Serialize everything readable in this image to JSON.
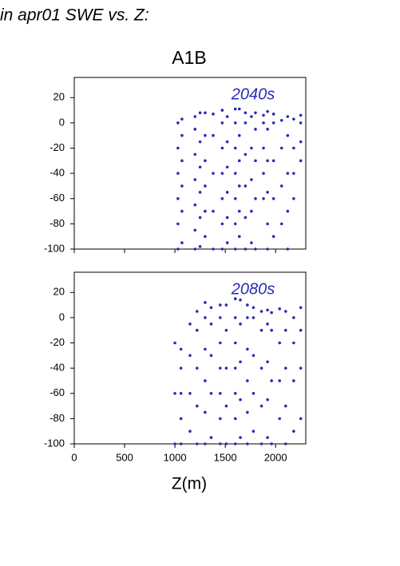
{
  "title": "in apr01 SWE vs. Z:",
  "chart_data": [
    {
      "type": "scatter",
      "title": "A1B",
      "annotation": "2040s",
      "color": "#2a2ab8",
      "xlim": [
        0,
        2300
      ],
      "xticks": [
        0,
        500,
        1000,
        1500,
        2000
      ],
      "ylim": [
        -100,
        36
      ],
      "yticks": [
        -100,
        -80,
        -60,
        -40,
        -20,
        0,
        20
      ],
      "x": [
        1030,
        1030,
        1030,
        1030,
        1030,
        1030,
        1070,
        1070,
        1070,
        1070,
        1070,
        1070,
        1200,
        1200,
        1200,
        1200,
        1200,
        1200,
        1200,
        1250,
        1250,
        1250,
        1250,
        1250,
        1250,
        1300,
        1300,
        1300,
        1300,
        1300,
        1300,
        1380,
        1380,
        1380,
        1380,
        1380,
        1470,
        1470,
        1470,
        1470,
        1470,
        1470,
        1470,
        1520,
        1520,
        1520,
        1520,
        1520,
        1520,
        1600,
        1600,
        1600,
        1600,
        1600,
        1600,
        1600,
        1640,
        1640,
        1640,
        1640,
        1640,
        1640,
        1700,
        1700,
        1700,
        1700,
        1700,
        1700,
        1760,
        1760,
        1760,
        1760,
        1760,
        1800,
        1800,
        1800,
        1800,
        1800,
        1880,
        1880,
        1880,
        1880,
        1880,
        1920,
        1920,
        1920,
        1920,
        1920,
        1920,
        1980,
        1980,
        1980,
        1980,
        1980,
        2060,
        2060,
        2060,
        2060,
        2120,
        2120,
        2120,
        2120,
        2120,
        2180,
        2180,
        2180,
        2180,
        2250,
        2250,
        2250,
        2250
      ],
      "values": [
        -100,
        -80,
        -60,
        -40,
        -20,
        0,
        -95,
        -70,
        -50,
        -30,
        -10,
        3,
        -100,
        -85,
        -65,
        -45,
        -25,
        -5,
        5,
        -98,
        -75,
        -55,
        -35,
        -15,
        8,
        -90,
        -70,
        -50,
        -30,
        -10,
        8,
        -100,
        -70,
        -40,
        -10,
        7,
        -100,
        -80,
        -60,
        -40,
        -20,
        0,
        10,
        -95,
        -75,
        -55,
        -35,
        -15,
        5,
        -100,
        -80,
        -60,
        -40,
        -20,
        0,
        11,
        -90,
        -70,
        -50,
        -30,
        -10,
        11,
        -100,
        -75,
        -50,
        -25,
        0,
        8,
        -95,
        -70,
        -45,
        -20,
        5,
        -100,
        -60,
        -30,
        -5,
        8,
        -60,
        -40,
        -20,
        0,
        6,
        -100,
        -80,
        -55,
        -30,
        -5,
        9,
        -90,
        -60,
        -30,
        0,
        7,
        -80,
        -50,
        -20,
        2,
        -100,
        -70,
        -40,
        -10,
        5,
        -60,
        -40,
        -20,
        3,
        -30,
        -15,
        0,
        6
      ]
    },
    {
      "type": "scatter",
      "annotation": "2080s",
      "xlabel": "Z(m)",
      "color": "#2a2ab8",
      "xlim": [
        0,
        2300
      ],
      "xticks": [
        0,
        500,
        1000,
        1500,
        2000
      ],
      "ylim": [
        -100,
        36
      ],
      "yticks": [
        -100,
        -80,
        -60,
        -40,
        -20,
        0,
        20
      ],
      "x": [
        1000,
        1000,
        1000,
        1060,
        1060,
        1060,
        1060,
        1060,
        1150,
        1150,
        1150,
        1150,
        1220,
        1220,
        1220,
        1220,
        1220,
        1300,
        1300,
        1300,
        1300,
        1300,
        1300,
        1360,
        1360,
        1360,
        1360,
        1360,
        1450,
        1450,
        1450,
        1450,
        1450,
        1450,
        1450,
        1510,
        1510,
        1510,
        1510,
        1510,
        1600,
        1600,
        1600,
        1600,
        1600,
        1600,
        1600,
        1650,
        1650,
        1650,
        1650,
        1650,
        1720,
        1720,
        1720,
        1720,
        1720,
        1720,
        1780,
        1780,
        1780,
        1780,
        1780,
        1860,
        1860,
        1860,
        1860,
        1860,
        1920,
        1920,
        1920,
        1920,
        1920,
        1960,
        1960,
        1960,
        1960,
        2040,
        2040,
        2040,
        2040,
        2100,
        2100,
        2100,
        2100,
        2100,
        2180,
        2180,
        2180,
        2180,
        2250,
        2250,
        2250,
        2250
      ],
      "values": [
        -100,
        -60,
        -20,
        -100,
        -80,
        -60,
        -40,
        -25,
        -90,
        -60,
        -30,
        -5,
        -100,
        -70,
        -40,
        -10,
        5,
        -100,
        -75,
        -50,
        -25,
        0,
        12,
        -95,
        -60,
        -30,
        -5,
        8,
        -100,
        -80,
        -60,
        -40,
        -20,
        0,
        10,
        -100,
        -70,
        -40,
        -10,
        10,
        -100,
        -80,
        -60,
        -40,
        -20,
        0,
        15,
        -95,
        -65,
        -35,
        -5,
        14,
        -100,
        -75,
        -50,
        -25,
        0,
        10,
        -90,
        -60,
        -30,
        0,
        8,
        -100,
        -70,
        -40,
        -10,
        5,
        -95,
        -65,
        -35,
        -5,
        6,
        -100,
        -50,
        -10,
        4,
        -80,
        -50,
        -20,
        7,
        -100,
        -70,
        -40,
        -10,
        5,
        -90,
        -50,
        -20,
        0,
        -80,
        -40,
        -10,
        8
      ]
    }
  ]
}
